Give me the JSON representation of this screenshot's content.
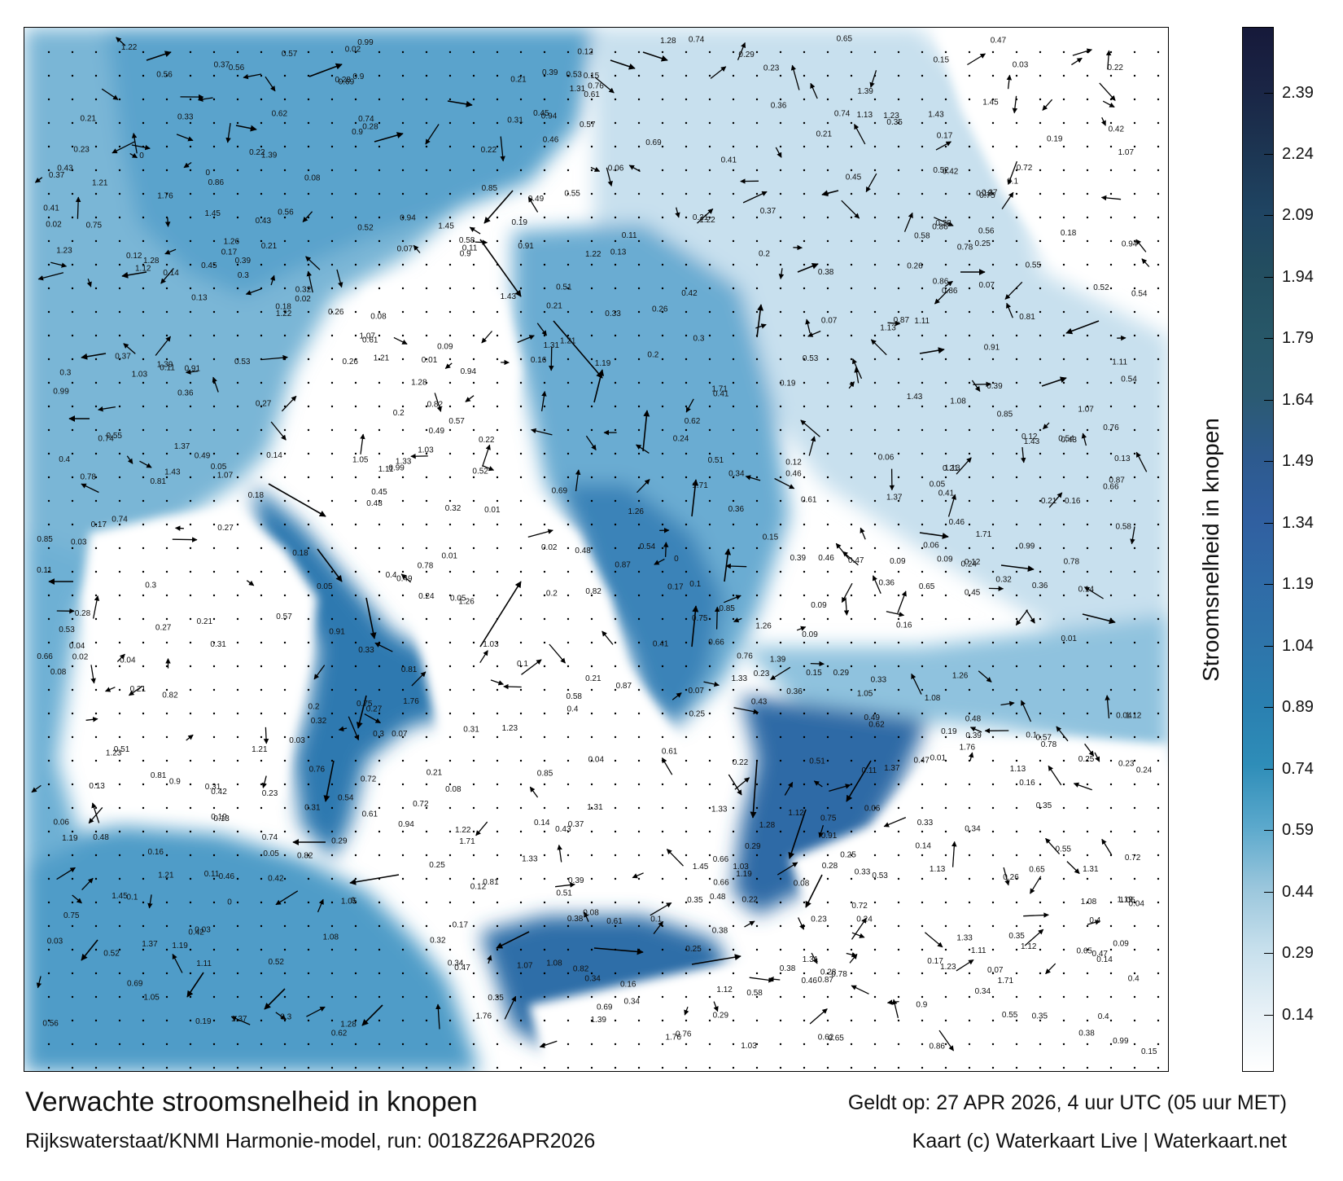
{
  "title": "Verwachte stroomsnelheid in knopen",
  "subtitle": "Rijkswaterstaat/KNMI Harmonie-model, run: 0018Z26APR2026",
  "valid_time": "Geldt op: 27 APR 2026, 4 uur UTC (05 uur MET)",
  "credit": "Kaart (c) Waterkaart Live | Waterkaart.net",
  "legend": {
    "label": "Stroomsnelheid in knopen",
    "ticks": [
      "0.14",
      "0.29",
      "0.44",
      "0.59",
      "0.74",
      "0.89",
      "1.04",
      "1.19",
      "1.34",
      "1.49",
      "1.64",
      "1.79",
      "1.94",
      "2.09",
      "2.24",
      "2.39"
    ],
    "min": 0,
    "max": 2.55,
    "colors": [
      "#ffffff",
      "#e6f0f6",
      "#c6dfec",
      "#9ac6dc",
      "#5aa8cc",
      "#2e8db8",
      "#2a7fb0",
      "#2e74aa",
      "#2f6aa6",
      "#305fa0",
      "#2d5a8e",
      "#2b5a72",
      "#275768",
      "#234e60",
      "#1f4462",
      "#1c3552",
      "#1a2545",
      "#16193a"
    ]
  },
  "map": {
    "background_color": "#ffffff",
    "water_color": "#5a9ec8",
    "deep_channel_color": "#2c5f9a",
    "labels": [
      {
        "v": "0.28"
      },
      {
        "v": "0.21"
      },
      {
        "v": "0.34"
      },
      {
        "v": "0.22"
      },
      {
        "v": "0.19"
      },
      {
        "v": "0.16"
      },
      {
        "v": "0.11"
      },
      {
        "v": "0.17"
      },
      {
        "v": "0.21"
      },
      {
        "v": "0.12"
      },
      {
        "v": "0.14"
      },
      {
        "v": "0.09"
      },
      {
        "v": "0.1"
      },
      {
        "v": "0.08"
      },
      {
        "v": "0.07"
      },
      {
        "v": "0.25"
      },
      {
        "v": "0.33"
      },
      {
        "v": "0.23"
      },
      {
        "v": "0.3"
      },
      {
        "v": "0.35"
      },
      {
        "v": "0.42"
      },
      {
        "v": "0.4"
      },
      {
        "v": "0.39"
      },
      {
        "v": "0.36"
      },
      {
        "v": "0.46"
      },
      {
        "v": "0.75"
      },
      {
        "v": "0.61"
      },
      {
        "v": "0.78"
      },
      {
        "v": "0.74"
      },
      {
        "v": "0.52"
      },
      {
        "v": "0.45"
      },
      {
        "v": "0.38"
      },
      {
        "v": "0.56"
      },
      {
        "v": "0.47"
      },
      {
        "v": "0.54"
      },
      {
        "v": "0.27"
      },
      {
        "v": "0.13"
      },
      {
        "v": "0.15"
      },
      {
        "v": "0.18"
      },
      {
        "v": "0.24"
      },
      {
        "v": "0.05"
      },
      {
        "v": "0.06"
      },
      {
        "v": "0.04"
      },
      {
        "v": "0.02"
      },
      {
        "v": "0.01"
      },
      {
        "v": "0.03"
      },
      {
        "v": "0.49"
      },
      {
        "v": "0.65"
      },
      {
        "v": "0.72"
      },
      {
        "v": "0.82"
      },
      {
        "v": "0.91"
      },
      {
        "v": "1.23"
      },
      {
        "v": "1.19"
      },
      {
        "v": "1.37"
      },
      {
        "v": "1.31"
      },
      {
        "v": "1.21"
      },
      {
        "v": "1.11"
      },
      {
        "v": "1.03"
      },
      {
        "v": "1.26"
      },
      {
        "v": "1.28"
      },
      {
        "v": "1.07"
      },
      {
        "v": "0.85"
      },
      {
        "v": "0.76"
      },
      {
        "v": "0.69"
      },
      {
        "v": "0.87"
      },
      {
        "v": "0.9"
      },
      {
        "v": "0.81"
      },
      {
        "v": "1.13"
      },
      {
        "v": "0.94"
      },
      {
        "v": "1.08"
      },
      {
        "v": "1.12"
      },
      {
        "v": "1.33"
      },
      {
        "v": "1.43"
      },
      {
        "v": "1.22"
      },
      {
        "v": "1.05"
      },
      {
        "v": "1.71"
      },
      {
        "v": "1.76"
      },
      {
        "v": "1.45"
      },
      {
        "v": "1.39"
      },
      {
        "v": "0.99"
      },
      {
        "v": "0.86"
      },
      {
        "v": "0.66"
      },
      {
        "v": "0.58"
      },
      {
        "v": "0.62"
      },
      {
        "v": "0.57"
      },
      {
        "v": "0.55"
      },
      {
        "v": "0.53"
      },
      {
        "v": "0.51"
      },
      {
        "v": "0.48"
      },
      {
        "v": "0.43"
      },
      {
        "v": "0.41"
      },
      {
        "v": "0.37"
      },
      {
        "v": "0.32"
      },
      {
        "v": "0.31"
      },
      {
        "v": "0.29"
      },
      {
        "v": "0.26"
      },
      {
        "v": "0.2"
      },
      {
        "v": "0"
      }
    ]
  }
}
